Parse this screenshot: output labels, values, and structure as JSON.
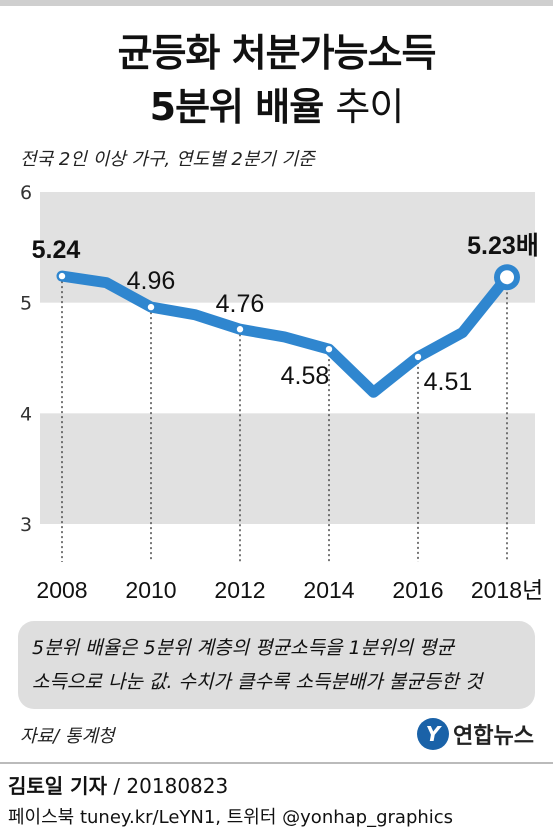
{
  "title_line1": "균등화 처분가능소득",
  "title_line2_bold": "5분위 배율",
  "title_line2_light": "추이",
  "subtitle": "전국 2인 이상 가구, 연도별 2분기 기준",
  "chart_data": {
    "type": "line",
    "x": [
      2008,
      2009,
      2010,
      2011,
      2012,
      2013,
      2014,
      2015,
      2016,
      2017,
      2018
    ],
    "values": [
      5.24,
      5.18,
      4.96,
      4.89,
      4.76,
      4.69,
      4.58,
      4.19,
      4.51,
      4.73,
      5.23
    ],
    "point_labels": [
      {
        "x": 2008,
        "text": "5.24"
      },
      {
        "x": 2010,
        "text": "4.96"
      },
      {
        "x": 2012,
        "text": "4.76"
      },
      {
        "x": 2014,
        "text": "4.58"
      },
      {
        "x": 2016,
        "text": "4.51"
      },
      {
        "x": 2018,
        "text": "5.23배"
      }
    ],
    "x_tick_labels": [
      "2008",
      "2010",
      "2012",
      "2014",
      "2016",
      "2018년"
    ],
    "y_ticks": [
      3,
      4,
      5,
      6
    ],
    "ylim": [
      3,
      6
    ],
    "grid": true,
    "line_color": "#2f86cf",
    "band_color": "#e1e1e1"
  },
  "note_line1": "5분위 배율은 5분위 계층의 평균소득을 1분위의 평균",
  "note_line2": "소득으로 나눈 값. 수치가 클수록 소득분배가 불균등한 것",
  "source": "자료/ 통계청",
  "logo_mark": "Y",
  "logo_text": "연합뉴스",
  "reporter_name": "김토일 기자",
  "reporter_date": " / 20180823",
  "social": "페이스북 tuney.kr/LeYN1, 트위터 @yonhap_graphics"
}
